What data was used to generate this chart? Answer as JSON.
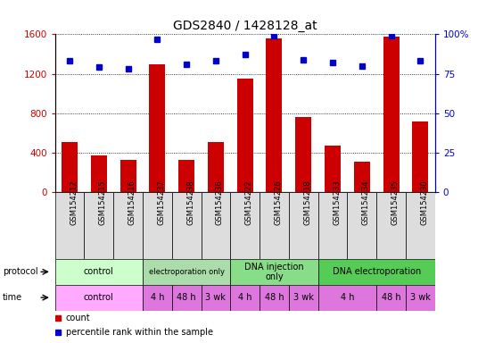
{
  "title": "GDS2840 / 1428128_at",
  "samples": [
    "GSM154212",
    "GSM154215",
    "GSM154216",
    "GSM154237",
    "GSM154238",
    "GSM154236",
    "GSM154222",
    "GSM154226",
    "GSM154218",
    "GSM154233",
    "GSM154234",
    "GSM154235",
    "GSM154230"
  ],
  "counts": [
    510,
    370,
    330,
    1300,
    330,
    510,
    1150,
    1560,
    760,
    470,
    310,
    1580,
    720
  ],
  "percentile_ranks": [
    83,
    79,
    78,
    97,
    81,
    83,
    87,
    99,
    84,
    82,
    80,
    99,
    83
  ],
  "ylim_left": [
    0,
    1600
  ],
  "ylim_right": [
    0,
    100
  ],
  "yticks_left": [
    0,
    400,
    800,
    1200,
    1600
  ],
  "yticks_right": [
    0,
    25,
    50,
    75,
    100
  ],
  "bar_color": "#cc0000",
  "dot_color": "#0000cc",
  "protocol_row": [
    {
      "label": "control",
      "start": 0,
      "end": 3,
      "color": "#ccffcc"
    },
    {
      "label": "electroporation only",
      "start": 3,
      "end": 6,
      "color": "#aaddaa"
    },
    {
      "label": "DNA injection\nonly",
      "start": 6,
      "end": 9,
      "color": "#88dd88"
    },
    {
      "label": "DNA electroporation",
      "start": 9,
      "end": 13,
      "color": "#55cc55"
    }
  ],
  "time_row": [
    {
      "label": "control",
      "start": 0,
      "end": 3,
      "color": "#ffaaff"
    },
    {
      "label": "4 h",
      "start": 3,
      "end": 4,
      "color": "#dd77dd"
    },
    {
      "label": "48 h",
      "start": 4,
      "end": 5,
      "color": "#dd77dd"
    },
    {
      "label": "3 wk",
      "start": 5,
      "end": 6,
      "color": "#dd77dd"
    },
    {
      "label": "4 h",
      "start": 6,
      "end": 7,
      "color": "#dd77dd"
    },
    {
      "label": "48 h",
      "start": 7,
      "end": 8,
      "color": "#dd77dd"
    },
    {
      "label": "3 wk",
      "start": 8,
      "end": 9,
      "color": "#dd77dd"
    },
    {
      "label": "4 h",
      "start": 9,
      "end": 11,
      "color": "#dd77dd"
    },
    {
      "label": "48 h",
      "start": 11,
      "end": 12,
      "color": "#dd77dd"
    },
    {
      "label": "3 wk",
      "start": 12,
      "end": 13,
      "color": "#dd77dd"
    }
  ],
  "legend_items": [
    {
      "color": "#cc0000",
      "label": "count"
    },
    {
      "color": "#0000cc",
      "label": "percentile rank within the sample"
    }
  ]
}
